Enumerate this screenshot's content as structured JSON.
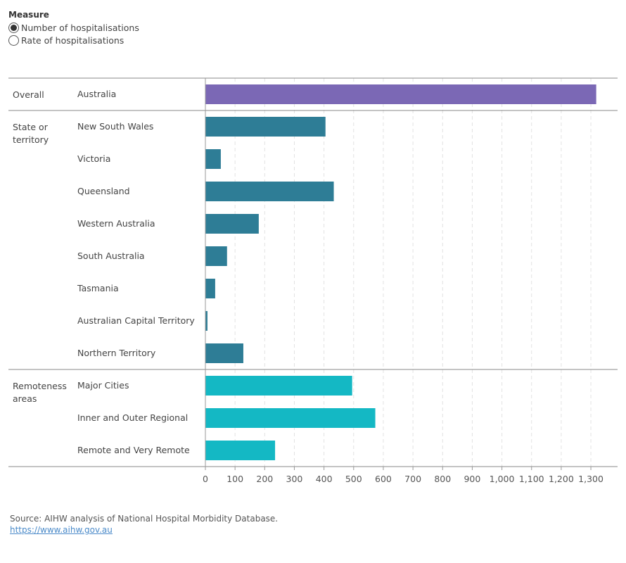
{
  "measure": {
    "title": "Measure",
    "options": [
      {
        "label": "Number of hospitalisations",
        "selected": true
      },
      {
        "label": "Rate of hospitalisations",
        "selected": false
      }
    ]
  },
  "chart_data": {
    "type": "bar",
    "orientation": "horizontal",
    "groups": [
      {
        "label": "Overall",
        "items": [
          {
            "label": "Australia",
            "value": 1318,
            "color": "#7b68b5"
          }
        ]
      },
      {
        "label": "State or\nterritory",
        "items": [
          {
            "label": "New South Wales",
            "value": 405,
            "color": "#2e7d96"
          },
          {
            "label": "Victoria",
            "value": 52,
            "color": "#2e7d96"
          },
          {
            "label": "Queensland",
            "value": 433,
            "color": "#2e7d96"
          },
          {
            "label": "Western Australia",
            "value": 180,
            "color": "#2e7d96"
          },
          {
            "label": "South Australia",
            "value": 73,
            "color": "#2e7d96"
          },
          {
            "label": "Tasmania",
            "value": 33,
            "color": "#2e7d96"
          },
          {
            "label": "Australian Capital Territory",
            "value": 7,
            "color": "#2e7d96"
          },
          {
            "label": "Northern Territory",
            "value": 128,
            "color": "#2e7d96"
          }
        ]
      },
      {
        "label": "Remoteness\nareas",
        "items": [
          {
            "label": "Major Cities",
            "value": 495,
            "color": "#14b8c4"
          },
          {
            "label": "Inner and Outer Regional",
            "value": 573,
            "color": "#14b8c4"
          },
          {
            "label": "Remote and Very Remote",
            "value": 235,
            "color": "#14b8c4"
          }
        ]
      }
    ],
    "xlim": [
      0,
      1390
    ],
    "xticks": [
      0,
      100,
      200,
      300,
      400,
      500,
      600,
      700,
      800,
      900,
      1000,
      1100,
      1200,
      1300
    ],
    "xtick_labels": [
      "0",
      "100",
      "200",
      "300",
      "400",
      "500",
      "600",
      "700",
      "800",
      "900",
      "1,000",
      "1,100",
      "1,200",
      "1,300"
    ],
    "grid": true
  },
  "source": {
    "text": "Source:  AIHW analysis of National Hospital Morbidity Database.",
    "link": "https://www.aihw.gov.au"
  }
}
